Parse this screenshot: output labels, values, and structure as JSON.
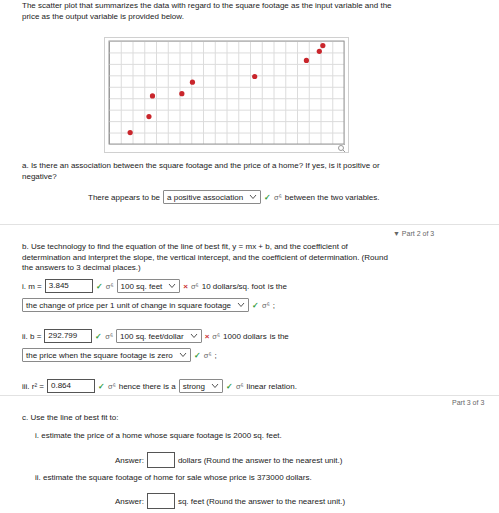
{
  "chart_data": {
    "type": "scatter",
    "x": [
      1.8,
      3.4,
      3.7,
      6.2,
      7.1,
      12.4,
      16.8,
      17.9,
      18.2
    ],
    "values": [
      1.0,
      2.4,
      4.2,
      4.4,
      5.4,
      5.9,
      7.3,
      8.1,
      8.6
    ],
    "color": "#c9262c",
    "marker": "circle",
    "xlim": [
      0,
      20
    ],
    "ylim": [
      0,
      9
    ],
    "xticks": [
      0,
      1,
      2,
      3,
      4,
      5,
      6,
      7,
      8,
      9,
      10,
      11,
      12,
      13,
      14,
      15,
      16,
      17,
      18,
      19,
      20
    ],
    "yticks": [
      0,
      1,
      2,
      3,
      4,
      5,
      6,
      7,
      8,
      9
    ],
    "grid": true,
    "tick_labels": false
  },
  "page": {
    "blocks": [
      {
        "lines": [
          "The scatter plot that summarizes the data with regard to the square footage as the input variable and the",
          "price as the output variable is provided below."
        ]
      },
      {
        "lines": [
          "a. Is there an association between the square footage and the price of a home? If yes, is it positive or",
          "negative?"
        ]
      },
      {
        "items": [
          {
            "kind": "text",
            "text": "There appears to be"
          },
          {
            "kind": "select",
            "text": "a positive association"
          },
          {
            "kind": "check",
            "text": "✓"
          },
          {
            "kind": "math",
            "text": "σ⁶"
          },
          {
            "kind": "text",
            "text": "between the two variables."
          }
        ]
      },
      {
        "kind": "part",
        "lines": [
          "▼ Part 2 of 3"
        ]
      },
      {
        "lines": [
          "b. Use technology to find the equation of the line of best fit, y = mx + b, and the coefficient of",
          "determination and interpret the slope, the vertical intercept, and the coefficient of determination. (Round",
          "the answers to 3 decimal places.)"
        ]
      },
      {
        "items": [
          {
            "kind": "text",
            "text": "i. m ="
          },
          {
            "kind": "input",
            "text": "3.845"
          },
          {
            "kind": "check",
            "text": "✓"
          },
          {
            "kind": "math",
            "text": "σ⁶"
          },
          {
            "kind": "select",
            "text": "100 sq. feet"
          },
          {
            "kind": "cross",
            "text": "×"
          },
          {
            "kind": "math",
            "text": "σ⁶"
          },
          {
            "kind": "text",
            "text": "10 dollars/sq. foot"
          },
          {
            "kind": "text",
            "text": "is the"
          }
        ]
      },
      {
        "items": [
          {
            "kind": "select",
            "text": "the change of price per 1 unit of change in square footage"
          },
          {
            "kind": "check",
            "text": "✓"
          },
          {
            "kind": "math",
            "text": "σ⁶"
          },
          {
            "kind": "text",
            "text": ";"
          }
        ]
      },
      {
        "items": [
          {
            "kind": "text",
            "text": "ii. b ="
          },
          {
            "kind": "input",
            "text": "292.799"
          },
          {
            "kind": "check",
            "text": "✓"
          },
          {
            "kind": "math",
            "text": "σ⁶"
          },
          {
            "kind": "select",
            "text": "100 sq. feet/dollar"
          },
          {
            "kind": "cross",
            "text": "×"
          },
          {
            "kind": "math",
            "text": "σ⁶"
          },
          {
            "kind": "text",
            "text": "1000 dollars"
          },
          {
            "kind": "text",
            "text": "is the"
          }
        ]
      },
      {
        "items": [
          {
            "kind": "select",
            "text": "the price when the square footage is zero"
          },
          {
            "kind": "check",
            "text": "✓"
          },
          {
            "kind": "math",
            "text": "σ⁶"
          },
          {
            "kind": "text",
            "text": ";"
          }
        ]
      },
      {
        "items": [
          {
            "kind": "text",
            "text": "iii. r² ="
          },
          {
            "kind": "input",
            "text": "0.864"
          },
          {
            "kind": "check",
            "text": "✓"
          },
          {
            "kind": "math",
            "text": "σ⁶"
          },
          {
            "kind": "text",
            "text": "hence there is a"
          },
          {
            "kind": "select",
            "text": "strong"
          },
          {
            "kind": "check",
            "text": "✓"
          },
          {
            "kind": "math",
            "text": "σ⁶"
          },
          {
            "kind": "text",
            "text": "linear relation."
          }
        ]
      },
      {
        "kind": "part",
        "lines": [
          "Part 3 of 3"
        ]
      },
      {
        "lines": [
          "c. Use the line of best fit to:"
        ]
      },
      {
        "lines": [
          "i. estimate the price of a home whose square footage is 2000 sq. feet."
        ]
      },
      {
        "items": [
          {
            "kind": "text",
            "text": "Answer:"
          },
          {
            "kind": "input"
          },
          {
            "kind": "text",
            "text": "dollars (Round the answer to the nearest unit.)"
          }
        ]
      },
      {
        "lines": [
          "ii. estimate the square footage of home for sale whose price is 373000 dollars."
        ]
      },
      {
        "items": [
          {
            "kind": "text",
            "text": "Answer:"
          },
          {
            "kind": "input"
          },
          {
            "kind": "text",
            "text": "sq. feet (Round the answer to the nearest unit.)"
          }
        ]
      }
    ]
  }
}
